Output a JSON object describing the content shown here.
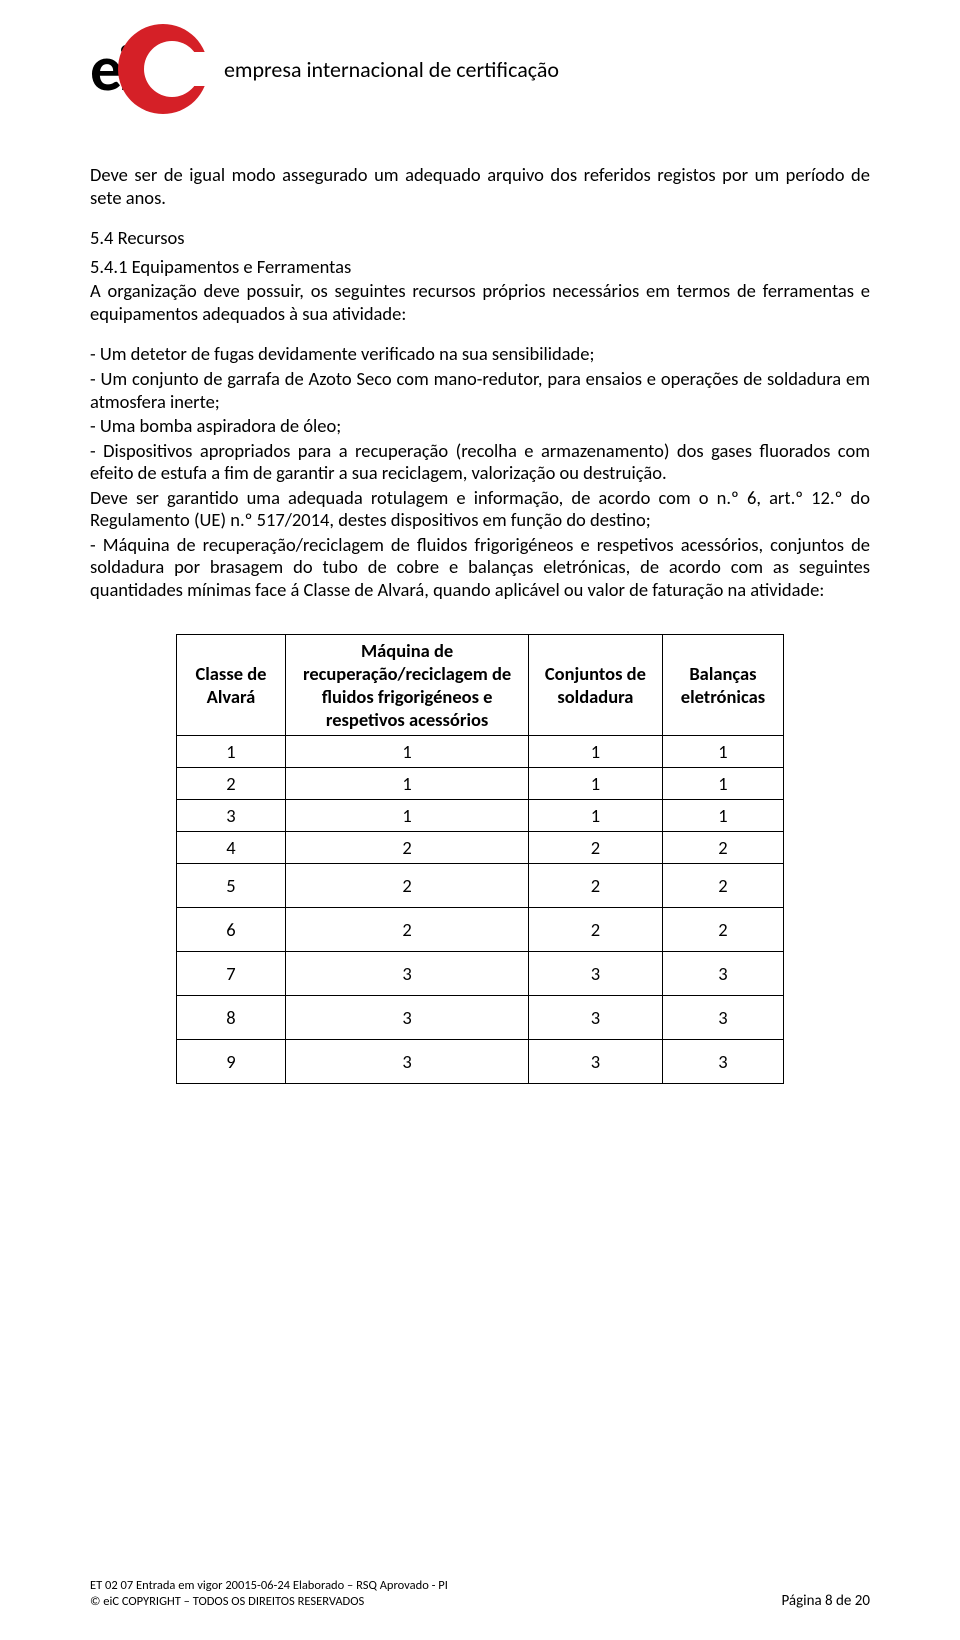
{
  "logo": {
    "ei": "ei",
    "company": "empresa internacional de certificação"
  },
  "p1": "Deve ser de igual modo assegurado um adequado arquivo dos referidos registos por um período de sete anos.",
  "s54": "5.4 Recursos",
  "s541": "5.4.1 Equipamentos e Ferramentas",
  "p2": "A organização deve possuir, os seguintes recursos próprios necessários em termos de ferramentas e equipamentos adequados à sua atividade:",
  "li1": " - Um detetor de fugas devidamente verificado na sua sensibilidade;",
  "li2": " - Um conjunto de garrafa de Azoto Seco com mano-redutor, para ensaios e operações de soldadura em atmosfera inerte;",
  "li3": " - Uma bomba aspiradora de óleo;",
  "li4": " - Dispositivos apropriados para a recuperação (recolha e armazenamento) dos gases fluorados com efeito de estufa a fim de garantir a sua reciclagem, valorização ou destruição.",
  "p3": "Deve ser garantido uma adequada rotulagem e informação, de acordo com o n.º 6, art.º 12.º do Regulamento (UE) n.º 517/2014, destes dispositivos em função do destino;",
  "li5": " - Máquina de recuperação/reciclagem de fluidos frigorigéneos e respetivos acessórios, conjuntos de soldadura por brasagem do tubo de cobre e balanças eletrónicas, de acordo com as seguintes quantidades mínimas face á Classe de Alvará, quando aplicável ou valor de faturação na atividade:",
  "table": {
    "headers": [
      "Classe de Alvará",
      "Máquina de recuperação/reciclagem de fluidos frigorigéneos e respetivos acessórios",
      "Conjuntos de soldadura",
      "Balanças eletrónicas"
    ],
    "rows": [
      [
        "1",
        "1",
        "1",
        "1"
      ],
      [
        "2",
        "1",
        "1",
        "1"
      ],
      [
        "3",
        "1",
        "1",
        "1"
      ],
      [
        "4",
        "2",
        "2",
        "2"
      ],
      [
        "5",
        "2",
        "2",
        "2"
      ],
      [
        "6",
        "2",
        "2",
        "2"
      ],
      [
        "7",
        "3",
        "3",
        "3"
      ],
      [
        "8",
        "3",
        "3",
        "3"
      ],
      [
        "9",
        "3",
        "3",
        "3"
      ]
    ]
  },
  "footer": {
    "line1": "ET 02 07 Entrada em vigor 20015-06-24 Elaborado – RSQ Aprovado - PI",
    "line2": "© eiC COPYRIGHT – TODOS OS DIREITOS RESERVADOS"
  },
  "pagenum": "Página 8 de 20"
}
